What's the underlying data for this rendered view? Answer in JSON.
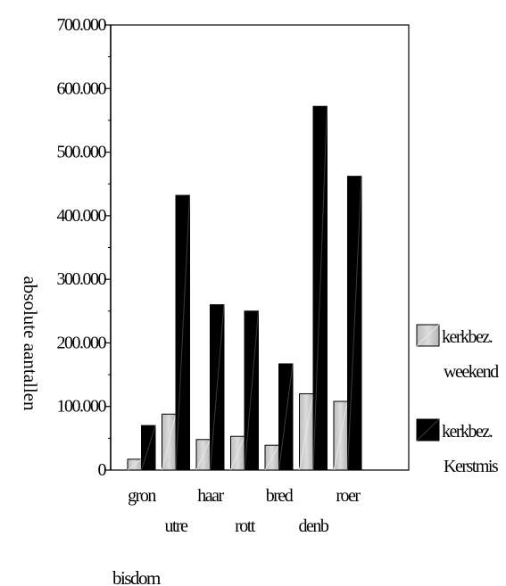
{
  "chart_data": {
    "type": "bar",
    "title": "",
    "xlabel": "bisdom",
    "ylabel": "absolute aantallen",
    "categories": [
      "gron",
      "utre",
      "haar",
      "rott",
      "bred",
      "denb",
      "roer"
    ],
    "series": [
      {
        "name": "kerkbez. weekend",
        "legend_lines": [
          "kerkbez.",
          "weekend"
        ],
        "color": "#c8c8c8",
        "values": [
          17000,
          88000,
          48000,
          53000,
          39000,
          120000,
          108000
        ]
      },
      {
        "name": "kerkbez. Kerstmis",
        "legend_lines": [
          "kerkbez.",
          "Kerstmis"
        ],
        "color": "#000000",
        "values": [
          70000,
          432000,
          260000,
          250000,
          167000,
          572000,
          462000
        ]
      }
    ],
    "ylim": [
      0,
      700000
    ],
    "yticks": [
      0,
      100000,
      200000,
      300000,
      400000,
      500000,
      600000,
      700000
    ],
    "ytick_labels": [
      "0",
      "100.000",
      "200.000",
      "300.000",
      "400.000",
      "500.000",
      "600.000",
      "700.000"
    ],
    "grid": false,
    "legend_position": "right"
  }
}
